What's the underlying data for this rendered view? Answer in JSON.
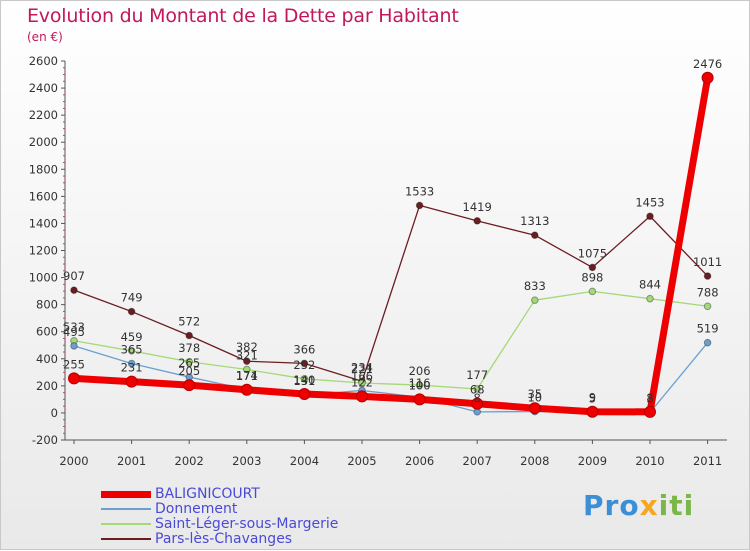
{
  "header": {
    "title": "Evolution du Montant de la Dette par Habitant",
    "subtitle": "(en €)"
  },
  "logo": {
    "text": "Proxiti"
  },
  "chart_data": {
    "type": "line",
    "x": [
      "2000",
      "2001",
      "2002",
      "2003",
      "2004",
      "2005",
      "2006",
      "2007",
      "2008",
      "2009",
      "2010",
      "2011"
    ],
    "ylim": [
      -200,
      2600
    ],
    "yticks": [
      -200,
      0,
      200,
      400,
      600,
      800,
      1000,
      1200,
      1400,
      1600,
      1800,
      2000,
      2200,
      2400,
      2600
    ],
    "grid": false,
    "legend_position": "bottom",
    "series": [
      {
        "name": "Pars-lès-Chavanges",
        "color": "#6b1e22",
        "width": 1.3,
        "values": [
          907,
          749,
          572,
          382,
          366,
          234,
          1533,
          1419,
          1313,
          1075,
          1453,
          1011
        ]
      },
      {
        "name": "Saint-Léger-sous-Margerie",
        "color": "#a3d977",
        "width": 1.3,
        "values": [
          533,
          459,
          378,
          321,
          252,
          221,
          206,
          177,
          833,
          898,
          844,
          788
        ]
      },
      {
        "name": "Donnement",
        "color": "#6aa0d0",
        "width": 1.3,
        "values": [
          495,
          365,
          265,
          174,
          131,
          166,
          116,
          8,
          10,
          5,
          3,
          519
        ]
      },
      {
        "name": "BALIGNICOURT",
        "color": "#ee0000",
        "width": 7,
        "values": [
          255,
          231,
          205,
          171,
          140,
          122,
          100,
          68,
          35,
          9,
          8,
          2476
        ]
      }
    ]
  }
}
